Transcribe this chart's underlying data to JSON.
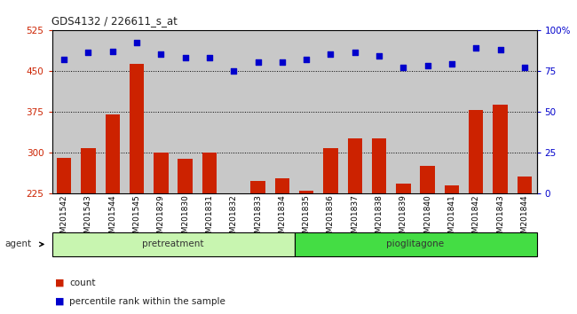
{
  "title": "GDS4132 / 226611_s_at",
  "categories": [
    "GSM201542",
    "GSM201543",
    "GSM201544",
    "GSM201545",
    "GSM201829",
    "GSM201830",
    "GSM201831",
    "GSM201832",
    "GSM201833",
    "GSM201834",
    "GSM201835",
    "GSM201836",
    "GSM201837",
    "GSM201838",
    "GSM201839",
    "GSM201840",
    "GSM201841",
    "GSM201842",
    "GSM201843",
    "GSM201844"
  ],
  "bar_values": [
    290,
    307,
    370,
    463,
    300,
    288,
    300,
    225,
    248,
    253,
    230,
    308,
    325,
    325,
    242,
    275,
    240,
    378,
    388,
    255
  ],
  "percentile_values": [
    82,
    86,
    87,
    92,
    85,
    83,
    83,
    75,
    80,
    80,
    82,
    85,
    86,
    84,
    77,
    78,
    79,
    89,
    88,
    77
  ],
  "group_labels": [
    "pretreatment",
    "pioglitagone"
  ],
  "group_colors": [
    "#c8f5b0",
    "#44dd44"
  ],
  "ylim_left": [
    225,
    525
  ],
  "ylim_right": [
    0,
    100
  ],
  "yticks_left": [
    225,
    300,
    375,
    450,
    525
  ],
  "yticks_right": [
    0,
    25,
    50,
    75,
    100
  ],
  "bar_color": "#cc2200",
  "marker_color": "#0000cc",
  "bg_color": "#c8c8c8",
  "agent_label": "agent",
  "legend_count": "count",
  "legend_pct": "percentile rank within the sample",
  "left_axis_color": "#cc2200",
  "right_axis_color": "#0000cc"
}
